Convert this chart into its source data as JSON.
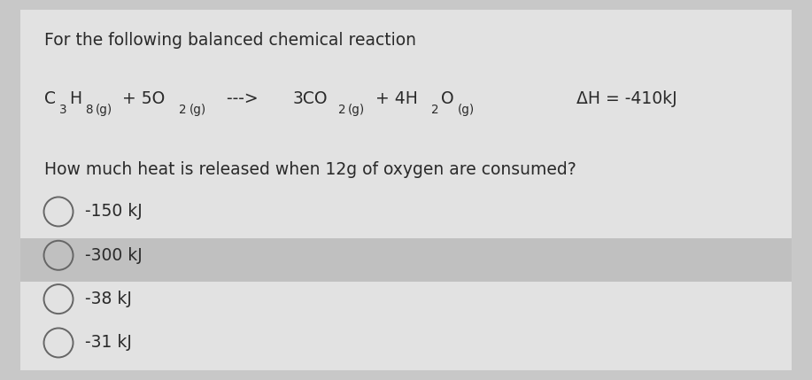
{
  "bg_color": "#c8c8c8",
  "card_color": "#e2e2e2",
  "highlight_color": "#c0c0c0",
  "title": "For the following balanced chemical reaction",
  "question": "How much heat is released when 12g of oxygen are consumed?",
  "delta_h": "ΔH = -410kJ",
  "options": [
    "-150 kJ",
    "-300 kJ",
    "-38 kJ",
    "-31 kJ"
  ],
  "highlighted_option_index": 1,
  "font_size_title": 13.5,
  "font_size_reaction": 13.5,
  "font_size_question": 13.5,
  "font_size_options": 13.5,
  "font_size_sub": 9.5,
  "text_color": "#2a2a2a",
  "circle_color": "#666666",
  "arrow_text": "--->"
}
